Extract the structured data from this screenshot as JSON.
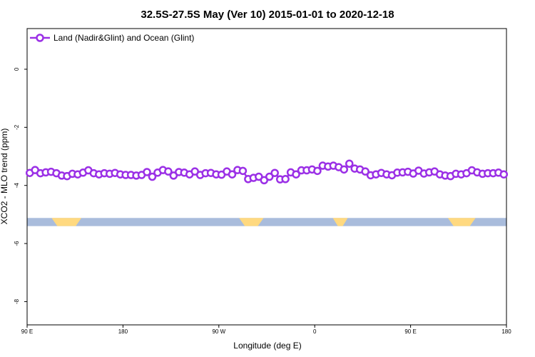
{
  "chart_data": {
    "type": "line",
    "title": "32.5S-27.5S May (Ver 10)   2015-01-01 to 2020-12-18",
    "xlabel": "Longitude (deg E)",
    "ylabel": "XCO2 - MLO trend (ppm)",
    "x_axis": {
      "range_deg_unwrapped": [
        90,
        540
      ],
      "ticks": [
        {
          "value": 90,
          "label": "90 E"
        },
        {
          "value": 180,
          "label": "180"
        },
        {
          "value": 270,
          "label": "90 W"
        },
        {
          "value": 360,
          "label": "0"
        },
        {
          "value": 450,
          "label": "90 E"
        },
        {
          "value": 540,
          "label": "180"
        }
      ]
    },
    "y_axis": {
      "range": [
        -8.8,
        1.4
      ],
      "ticks": [
        {
          "value": 0,
          "label": "0"
        },
        {
          "value": -2,
          "label": "-2"
        },
        {
          "value": -4,
          "label": "-4"
        },
        {
          "value": -6,
          "label": "-6"
        },
        {
          "value": -8,
          "label": "-8"
        }
      ]
    },
    "legend": {
      "position": "top-left",
      "entries": [
        "Land (Nadir&Glint) and Ocean (Glint)"
      ]
    },
    "series": [
      {
        "name": "Land (Nadir&Glint) and Ocean (Glint)",
        "color": "#9b30e6",
        "x": [
          92.5,
          97.5,
          102.5,
          107.5,
          112.5,
          117.5,
          122.5,
          127.5,
          132.5,
          137.5,
          142.5,
          147.5,
          152.5,
          157.5,
          162.5,
          167.5,
          172.5,
          177.5,
          182.5,
          187.5,
          192.5,
          197.5,
          202.5,
          207.5,
          212.5,
          217.5,
          222.5,
          227.5,
          232.5,
          237.5,
          242.5,
          247.5,
          252.5,
          257.5,
          262.5,
          267.5,
          272.5,
          277.5,
          282.5,
          287.5,
          292.5,
          297.5,
          302.5,
          307.5,
          312.5,
          317.5,
          322.5,
          327.5,
          332.5,
          337.5,
          342.5,
          347.5,
          352.5,
          357.5,
          362.5,
          367.5,
          372.5,
          377.5,
          382.5,
          387.5,
          392.5,
          397.5,
          402.5,
          407.5,
          412.5,
          417.5,
          422.5,
          427.5,
          432.5,
          437.5,
          442.5,
          447.5,
          452.5,
          457.5,
          462.5,
          467.5,
          472.5,
          477.5,
          482.5,
          487.5,
          492.5,
          497.5,
          502.5,
          507.5,
          512.5,
          517.5,
          522.5,
          527.5,
          532.5,
          537.5
        ],
        "y": [
          -3.57,
          -3.47,
          -3.58,
          -3.55,
          -3.53,
          -3.58,
          -3.66,
          -3.68,
          -3.6,
          -3.62,
          -3.56,
          -3.48,
          -3.58,
          -3.62,
          -3.58,
          -3.6,
          -3.57,
          -3.62,
          -3.64,
          -3.64,
          -3.66,
          -3.64,
          -3.54,
          -3.7,
          -3.56,
          -3.47,
          -3.52,
          -3.66,
          -3.54,
          -3.56,
          -3.62,
          -3.52,
          -3.64,
          -3.58,
          -3.57,
          -3.62,
          -3.63,
          -3.52,
          -3.62,
          -3.47,
          -3.5,
          -3.78,
          -3.74,
          -3.7,
          -3.82,
          -3.7,
          -3.57,
          -3.79,
          -3.78,
          -3.55,
          -3.62,
          -3.48,
          -3.48,
          -3.45,
          -3.5,
          -3.32,
          -3.35,
          -3.32,
          -3.37,
          -3.45,
          -3.25,
          -3.42,
          -3.45,
          -3.52,
          -3.65,
          -3.62,
          -3.57,
          -3.62,
          -3.65,
          -3.56,
          -3.55,
          -3.53,
          -3.59,
          -3.49,
          -3.59,
          -3.55,
          -3.52,
          -3.62,
          -3.66,
          -3.68,
          -3.6,
          -3.62,
          -3.58,
          -3.48,
          -3.55,
          -3.6,
          -3.58,
          -3.58,
          -3.56,
          -3.62
        ]
      }
    ],
    "bands": {
      "y_range": [
        -5.4,
        -5.12
      ],
      "land_color": "#ffd980",
      "ocean_color": "#a9bcdc",
      "land_segments": [
        [
          113,
          141
        ],
        [
          289,
          312
        ],
        [
          377,
          391
        ],
        [
          485,
          511
        ]
      ]
    }
  }
}
